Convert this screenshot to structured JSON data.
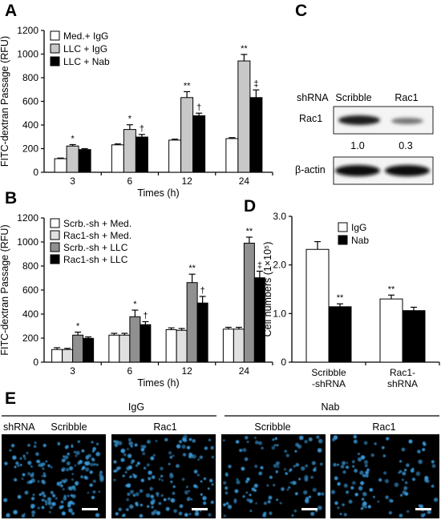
{
  "panels": {
    "A": "A",
    "B": "B",
    "C": "C",
    "D": "D",
    "E": "E"
  },
  "chart_data": [
    {
      "panel": "A",
      "type": "bar",
      "xlabel": "Times (h)",
      "ylabel": "FITC-dextran Passage (RFU)",
      "ylim": [
        0,
        1200
      ],
      "yticks": [
        0,
        200,
        400,
        600,
        800,
        1000,
        1200
      ],
      "categories": [
        "3",
        "6",
        "12",
        "24"
      ],
      "legend_position": "top-left",
      "series": [
        {
          "name": "Med.+ IgG",
          "color": "#ffffff",
          "values": [
            115,
            232,
            272,
            285
          ],
          "errors": [
            5,
            8,
            8,
            8
          ]
        },
        {
          "name": "LLC + IgG",
          "color": "#c8c8c8",
          "values": [
            222,
            362,
            632,
            942
          ],
          "errors": [
            12,
            40,
            50,
            55
          ]
        },
        {
          "name": "LLC + Nab",
          "color": "#000000",
          "values": [
            192,
            298,
            478,
            632
          ],
          "errors": [
            8,
            22,
            22,
            65
          ]
        }
      ],
      "annotations": [
        {
          "category": "3",
          "series": 1,
          "text": "*"
        },
        {
          "category": "6",
          "series": 1,
          "text": "*"
        },
        {
          "category": "6",
          "series": 2,
          "text": "†"
        },
        {
          "category": "12",
          "series": 1,
          "text": "**"
        },
        {
          "category": "12",
          "series": 2,
          "text": "†"
        },
        {
          "category": "24",
          "series": 1,
          "text": "**"
        },
        {
          "category": "24",
          "series": 2,
          "text": "‡"
        }
      ]
    },
    {
      "panel": "B",
      "type": "bar",
      "xlabel": "Times (h)",
      "ylabel": "FITC-dextran Passage (RFU)",
      "ylim": [
        0,
        1200
      ],
      "yticks": [
        0,
        200,
        400,
        600,
        800,
        1000,
        1200
      ],
      "categories": [
        "3",
        "6",
        "12",
        "24"
      ],
      "legend_position": "top-left",
      "series": [
        {
          "name": "Scrb.-sh + Med.",
          "color": "#ffffff",
          "values": [
            105,
            225,
            270,
            275
          ],
          "errors": [
            15,
            15,
            15,
            15
          ]
        },
        {
          "name": "Rac1-sh + Med.",
          "color": "#e0e0e0",
          "values": [
            105,
            225,
            265,
            275
          ],
          "errors": [
            10,
            15,
            15,
            15
          ]
        },
        {
          "name": "Scrb.-sh + LLC",
          "color": "#909090",
          "values": [
            225,
            378,
            662,
            990
          ],
          "errors": [
            25,
            55,
            70,
            50
          ]
        },
        {
          "name": "Rac1-sh + LLC",
          "color": "#000000",
          "values": [
            198,
            312,
            492,
            702
          ],
          "errors": [
            12,
            25,
            55,
            55
          ]
        }
      ],
      "annotations": [
        {
          "category": "3",
          "series": 2,
          "text": "*"
        },
        {
          "category": "6",
          "series": 2,
          "text": "*"
        },
        {
          "category": "6",
          "series": 3,
          "text": "†"
        },
        {
          "category": "12",
          "series": 2,
          "text": "**"
        },
        {
          "category": "12",
          "series": 3,
          "text": "†"
        },
        {
          "category": "24",
          "series": 2,
          "text": "**"
        },
        {
          "category": "24",
          "series": 3,
          "text": "‡"
        }
      ]
    },
    {
      "panel": "D",
      "type": "bar",
      "xlabel": "",
      "ylabel": "Cell numbers (1×10⁵)",
      "ylim": [
        0,
        3.0
      ],
      "yticks": [
        "0",
        "1.0",
        "2.0",
        "3.0"
      ],
      "categories": [
        "Scribble -shRNA",
        "Rac1- shRNA"
      ],
      "legend_position": "top-right",
      "series": [
        {
          "name": "IgG",
          "color": "#ffffff",
          "values": [
            2.32,
            1.3
          ],
          "errors": [
            0.16,
            0.08
          ]
        },
        {
          "name": "Nab",
          "color": "#000000",
          "values": [
            1.14,
            1.06
          ],
          "errors": [
            0.06,
            0.07
          ]
        }
      ],
      "annotations": [
        {
          "category": "Scribble -shRNA",
          "series": 1,
          "text": "**"
        },
        {
          "category": "Rac1- shRNA",
          "series": 0,
          "text": "**"
        }
      ]
    }
  ],
  "blot": {
    "shrna_label": "shRNA",
    "lanes": [
      "Scribble",
      "Rac1"
    ],
    "rows": [
      "Rac1",
      "β-actin"
    ],
    "quant": [
      "1.0",
      "0.3"
    ]
  },
  "micro": {
    "groups": [
      "IgG",
      "Nab"
    ],
    "shrna_label": "shRNA",
    "labels": [
      "Scribble",
      "Rac1",
      "Scribble",
      "Rac1"
    ]
  },
  "colors": {
    "cell_fluorescence": "#3a9ad9",
    "micro_background": "#000000"
  }
}
